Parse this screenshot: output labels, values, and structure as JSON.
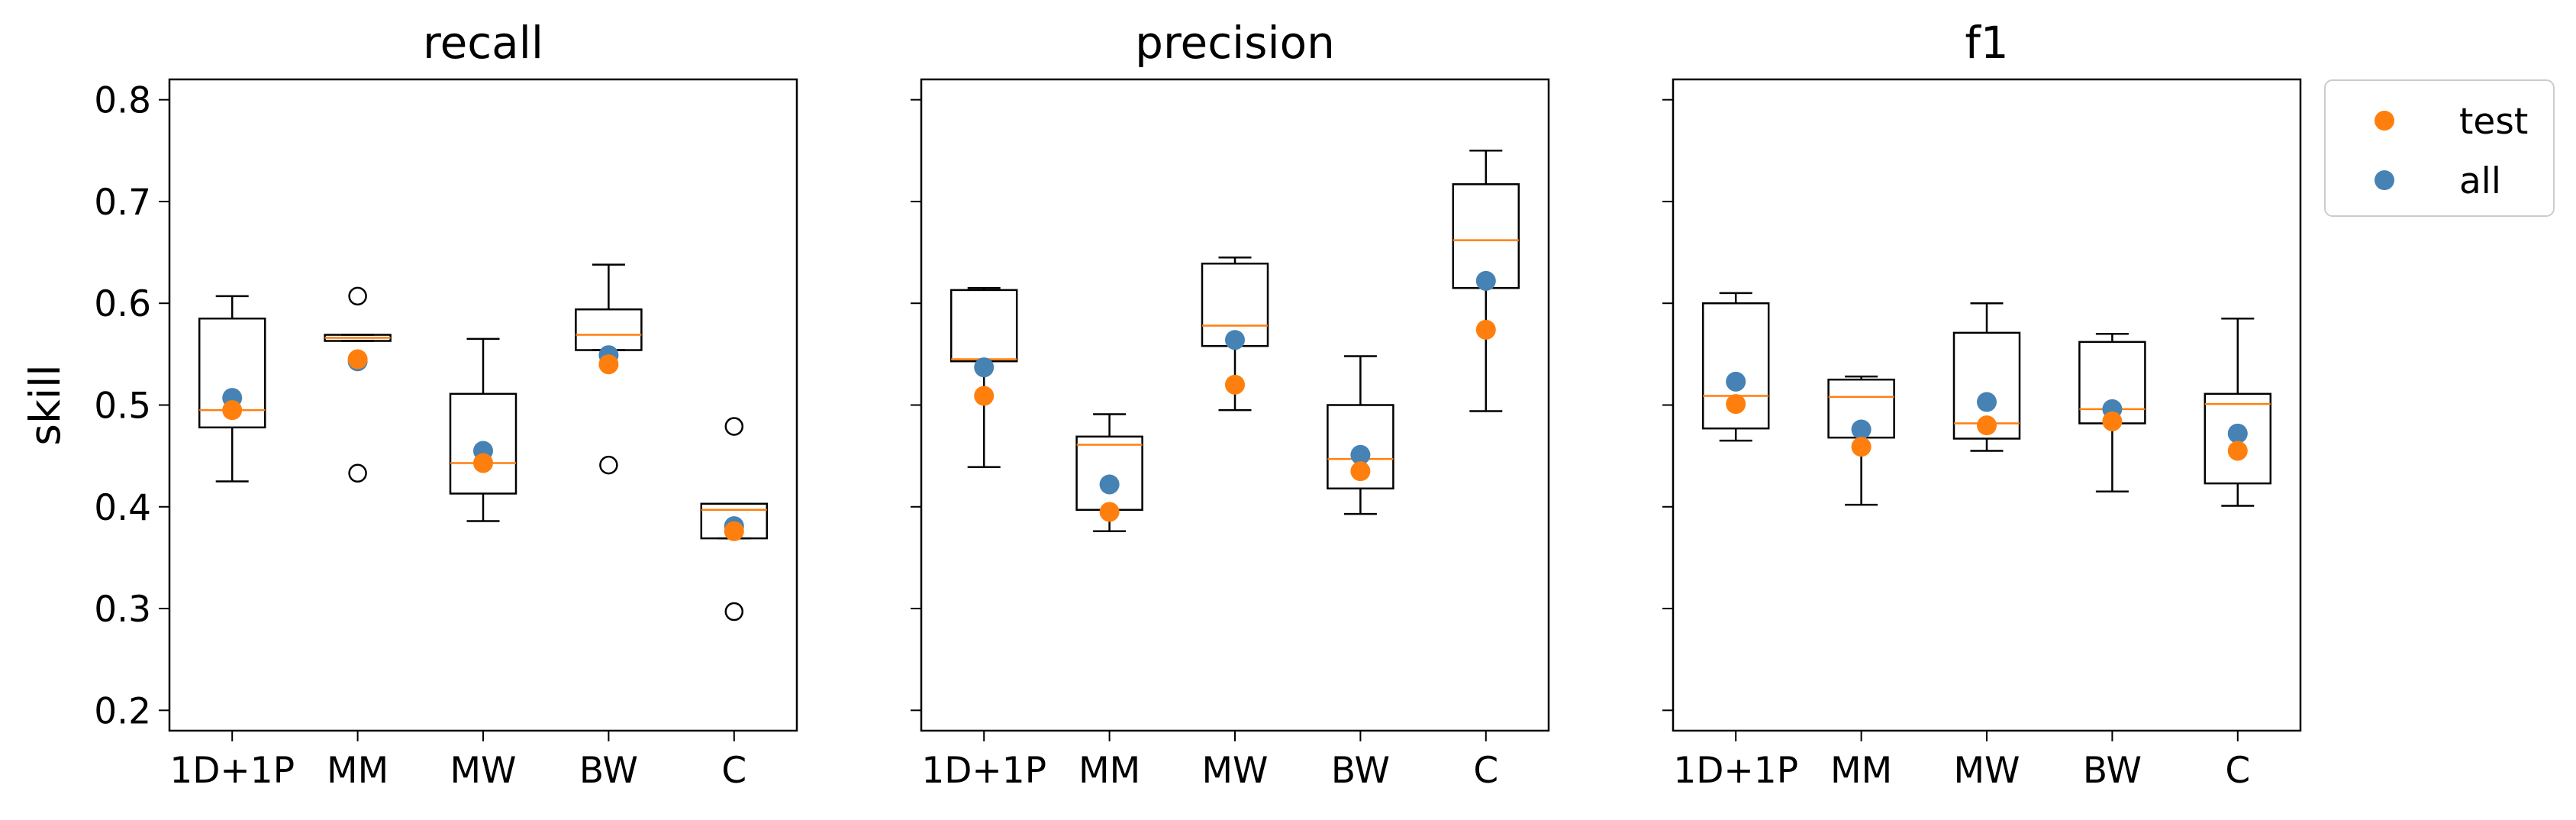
{
  "chart_data": {
    "type": "box",
    "ylabel": "skill",
    "ylim": [
      0.18,
      0.82
    ],
    "yticks": [
      "0.2",
      "0.3",
      "0.4",
      "0.5",
      "0.6",
      "0.7",
      "0.8"
    ],
    "categories": [
      "1D+1P",
      "MM",
      "MW",
      "BW",
      "C"
    ],
    "grid": false,
    "legend": {
      "placement": "outside-top-right",
      "entries": [
        {
          "label": "test",
          "color": "#ff7f0e"
        },
        {
          "label": "all",
          "color": "#4682b4"
        }
      ]
    },
    "colors": {
      "median": "#ff7f0e",
      "test": "#ff7f0e",
      "all": "#4682b4",
      "box": "#000000"
    },
    "panels": [
      {
        "title": "recall",
        "boxes": [
          {
            "category": "1D+1P",
            "whisker_low": 0.425,
            "q1": 0.478,
            "median": 0.495,
            "q3": 0.585,
            "whisker_high": 0.607,
            "outliers": [],
            "test": 0.495,
            "all": 0.507
          },
          {
            "category": "MM",
            "whisker_low": 0.563,
            "q1": 0.563,
            "median": 0.566,
            "q3": 0.569,
            "whisker_high": 0.569,
            "outliers": [
              0.607,
              0.433
            ],
            "test": 0.545,
            "all": 0.543
          },
          {
            "category": "MW",
            "whisker_low": 0.386,
            "q1": 0.413,
            "median": 0.443,
            "q3": 0.511,
            "whisker_high": 0.565,
            "outliers": [],
            "test": 0.443,
            "all": 0.455
          },
          {
            "category": "BW",
            "whisker_low": 0.554,
            "q1": 0.554,
            "median": 0.569,
            "q3": 0.594,
            "whisker_high": 0.638,
            "outliers": [
              0.441
            ],
            "test": 0.54,
            "all": 0.549
          },
          {
            "category": "C",
            "whisker_low": 0.369,
            "q1": 0.369,
            "median": 0.397,
            "q3": 0.403,
            "whisker_high": 0.403,
            "outliers": [
              0.479,
              0.297
            ],
            "test": 0.376,
            "all": 0.381
          }
        ]
      },
      {
        "title": "precision",
        "boxes": [
          {
            "category": "1D+1P",
            "whisker_low": 0.439,
            "q1": 0.543,
            "median": 0.545,
            "q3": 0.613,
            "whisker_high": 0.615,
            "outliers": [],
            "test": 0.509,
            "all": 0.537
          },
          {
            "category": "MM",
            "whisker_low": 0.376,
            "q1": 0.397,
            "median": 0.461,
            "q3": 0.469,
            "whisker_high": 0.491,
            "outliers": [],
            "test": 0.395,
            "all": 0.422
          },
          {
            "category": "MW",
            "whisker_low": 0.495,
            "q1": 0.558,
            "median": 0.578,
            "q3": 0.639,
            "whisker_high": 0.645,
            "outliers": [],
            "test": 0.52,
            "all": 0.564
          },
          {
            "category": "BW",
            "whisker_low": 0.393,
            "q1": 0.418,
            "median": 0.447,
            "q3": 0.5,
            "whisker_high": 0.548,
            "outliers": [],
            "test": 0.435,
            "all": 0.451
          },
          {
            "category": "C",
            "whisker_low": 0.494,
            "q1": 0.615,
            "median": 0.662,
            "q3": 0.717,
            "whisker_high": 0.75,
            "outliers": [],
            "test": 0.574,
            "all": 0.622
          }
        ]
      },
      {
        "title": "f1",
        "boxes": [
          {
            "category": "1D+1P",
            "whisker_low": 0.465,
            "q1": 0.477,
            "median": 0.509,
            "q3": 0.6,
            "whisker_high": 0.61,
            "outliers": [],
            "test": 0.501,
            "all": 0.523
          },
          {
            "category": "MM",
            "whisker_low": 0.402,
            "q1": 0.468,
            "median": 0.508,
            "q3": 0.525,
            "whisker_high": 0.528,
            "outliers": [],
            "test": 0.459,
            "all": 0.476
          },
          {
            "category": "MW",
            "whisker_low": 0.455,
            "q1": 0.467,
            "median": 0.482,
            "q3": 0.571,
            "whisker_high": 0.6,
            "outliers": [],
            "test": 0.48,
            "all": 0.503
          },
          {
            "category": "BW",
            "whisker_low": 0.415,
            "q1": 0.482,
            "median": 0.496,
            "q3": 0.562,
            "whisker_high": 0.57,
            "outliers": [],
            "test": 0.484,
            "all": 0.496
          },
          {
            "category": "C",
            "whisker_low": 0.401,
            "q1": 0.423,
            "median": 0.501,
            "q3": 0.511,
            "whisker_high": 0.585,
            "outliers": [],
            "test": 0.455,
            "all": 0.472
          }
        ]
      }
    ]
  }
}
